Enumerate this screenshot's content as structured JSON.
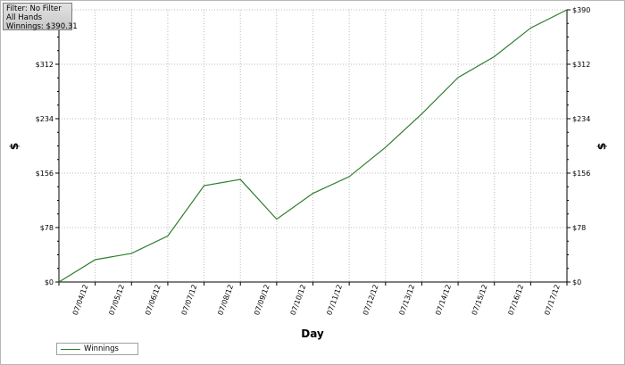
{
  "info": {
    "filter": "Filter: No Filter",
    "hands": "All Hands",
    "winnings": "Winnings: $390.31"
  },
  "legend": {
    "label": "Winnings"
  },
  "colors": {
    "line": "#2d7d2d",
    "grid": "#bcbcbc",
    "axis": "#000000"
  },
  "chart_data": {
    "type": "line",
    "xlabel": "Day",
    "ylabel": "$",
    "ylabel_right": "$",
    "ylim": [
      0,
      390
    ],
    "y_ticks": [
      0,
      78,
      156,
      234,
      312,
      390
    ],
    "y_tick_labels": [
      "$0",
      "$78",
      "$156",
      "$234",
      "$312",
      "$390"
    ],
    "categories": [
      "07/04/12",
      "07/05/12",
      "07/06/12",
      "07/07/12",
      "07/08/12",
      "07/09/12",
      "07/10/12",
      "07/11/12",
      "07/12/12",
      "07/13/12",
      "07/14/12",
      "07/15/12",
      "07/16/12",
      "07/17/12"
    ],
    "grid": true,
    "legend_position": "bottom-left",
    "series": [
      {
        "name": "Winnings",
        "x": [
          0,
          1,
          2,
          3,
          4,
          5,
          6,
          7,
          8,
          9,
          10,
          11,
          12,
          13,
          14
        ],
        "values": [
          0,
          32,
          41,
          66,
          138,
          147,
          90,
          127,
          151,
          193,
          241,
          293,
          323,
          364,
          390
        ]
      }
    ]
  }
}
